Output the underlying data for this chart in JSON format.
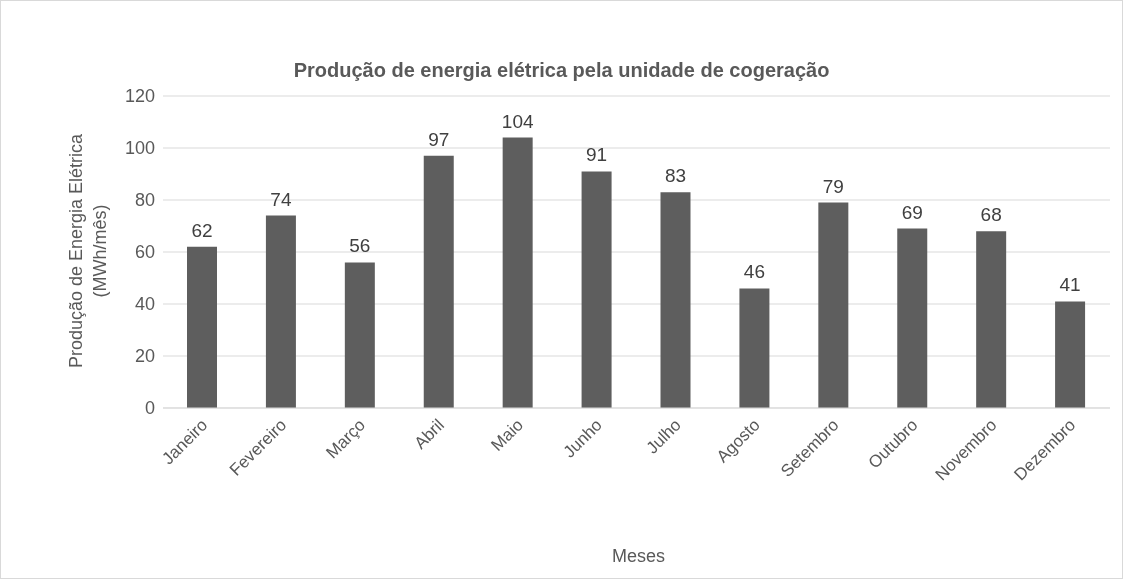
{
  "chart_data": {
    "type": "bar",
    "title": "Produção de energia elétrica pela unidade de cogeração",
    "xlabel": "Meses",
    "ylabel": "Produção de Energia Elétrica (MWh/mês)",
    "categories": [
      "Janeiro",
      "Fevereiro",
      "Março",
      "Abril",
      "Maio",
      "Junho",
      "Julho",
      "Agosto",
      "Setembro",
      "Outubro",
      "Novembro",
      "Dezembro"
    ],
    "values": [
      62,
      74,
      56,
      97,
      104,
      91,
      83,
      46,
      79,
      69,
      68,
      41
    ],
    "color": "#5e5e5e",
    "ylim": [
      0,
      120
    ],
    "yticks": [
      0,
      20,
      40,
      60,
      80,
      100,
      120
    ],
    "grid": "y",
    "data_labels": true,
    "legend": false
  }
}
